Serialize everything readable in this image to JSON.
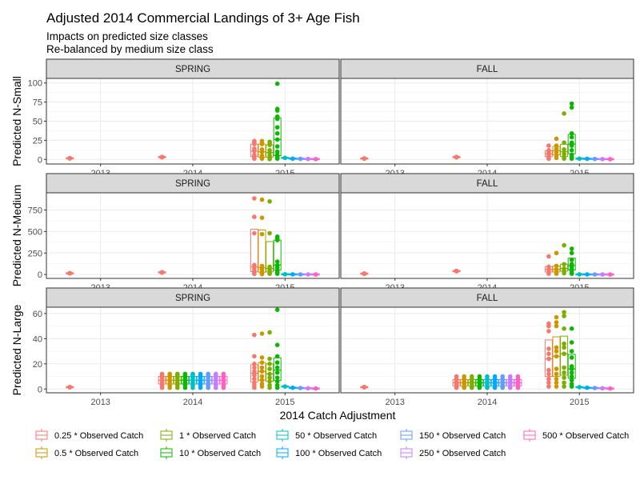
{
  "chart_data": {
    "type": "scatter",
    "title": "Adjusted 2014 Commercial Landings of 3+ Age Fish",
    "subtitle_lines": [
      "Impacts on predicted size classes",
      "Re-balanced by medium size class"
    ],
    "legend": {
      "title": "2014 Catch Adjustment",
      "position": "bottom",
      "entries": [
        {
          "label": "0.25 * Observed Catch",
          "color": "#F8766D"
        },
        {
          "label": "0.5 * Observed Catch",
          "color": "#CD9600"
        },
        {
          "label": "1 * Observed Catch",
          "color": "#7CAE00"
        },
        {
          "label": "10 * Observed Catch",
          "color": "#0CB702"
        },
        {
          "label": "50 * Observed Catch",
          "color": "#00BFC4"
        },
        {
          "label": "100 * Observed Catch",
          "color": "#00A9FF"
        },
        {
          "label": "150 * Observed Catch",
          "color": "#619CFF"
        },
        {
          "label": "250 * Observed Catch",
          "color": "#C77CFF"
        },
        {
          "label": "500 * Observed Catch",
          "color": "#FF61C3"
        }
      ]
    },
    "x_categories": [
      "2013",
      "2014",
      "2015"
    ],
    "columns": [
      "SPRING",
      "FALL"
    ],
    "rows": [
      {
        "ylabel": "Predicted N-Small",
        "ylim": [
          -6,
          106
        ],
        "yticks": [
          0,
          25,
          50,
          75,
          100
        ],
        "panels": {
          "SPRING": {
            "2013": [
              [
                1.5,
                1.5,
                1.5,
                1.5,
                1.5,
                1.5,
                1.5,
                1.5,
                1.5
              ]
            ],
            "2014": [
              [
                3,
                3,
                3,
                3,
                3,
                3,
                3,
                3,
                3
              ]
            ],
            "2015": [
              [
                24,
                22,
                20,
                14,
                11,
                6,
                4,
                2,
                1
              ],
              [
                24,
                22,
                20,
                13,
                10,
                5,
                3,
                2,
                1
              ],
              [
                23,
                21,
                19,
                12,
                9,
                5,
                3,
                1,
                0.5
              ],
              [
                99,
                66,
                64,
                56,
                53,
                42,
                34,
                26,
                17,
                10,
                6,
                4,
                3,
                2,
                1
              ],
              [
                2
              ],
              [
                1
              ],
              [
                0.8
              ],
              [
                0.6
              ],
              [
                0.4
              ]
            ]
          },
          "FALL": {
            "2013": [
              [
                1.2,
                1.2,
                1.2,
                1.2,
                1.2,
                1.2,
                1.2,
                1.2,
                1.2
              ]
            ],
            "2014": [
              [
                3,
                3,
                3,
                3,
                3,
                3,
                3,
                3,
                3
              ]
            ],
            "2015": [
              [
                18,
                12,
                9,
                6,
                3,
                1
              ],
              [
                27,
                18,
                14,
                9,
                5,
                2
              ],
              [
                60,
                22,
                13,
                7,
                3,
                1
              ],
              [
                73,
                68,
                34,
                29,
                22,
                18,
                12,
                6,
                3,
                1
              ],
              [
                1
              ],
              [
                0.8
              ],
              [
                0.6
              ],
              [
                0.4
              ],
              [
                0.3
              ]
            ]
          }
        }
      },
      {
        "ylabel": "Predicted N-Medium",
        "ylim": [
          -45,
          950
        ],
        "yticks": [
          0,
          250,
          500,
          750
        ],
        "panels": {
          "SPRING": {
            "2013": [
              [
                15,
                15,
                15,
                15,
                15,
                15,
                15,
                15,
                15
              ]
            ],
            "2014": [
              [
                25,
                25,
                25,
                25,
                25,
                25,
                25,
                25,
                25
              ]
            ],
            "2015": [
              [
                885,
                670,
                480,
                110,
                70,
                40,
                20,
                8
              ],
              [
                870,
                660,
                470,
                100,
                60,
                30,
                15,
                5
              ],
              [
                850,
                480,
                90,
                50,
                25,
                10
              ],
              [
                440,
                420,
                400,
                150,
                110,
                80,
                50,
                25,
                10
              ],
              [
                3
              ],
              [
                2
              ],
              [
                1.5
              ],
              [
                1
              ],
              [
                0.5
              ]
            ]
          },
          "FALL": {
            "2013": [
              [
                10,
                10,
                10,
                10,
                10,
                10,
                10,
                10,
                10
              ]
            ],
            "2014": [
              [
                40,
                40,
                40,
                40,
                40,
                40,
                40,
                40,
                40
              ]
            ],
            "2015": [
              [
                210,
                90,
                60,
                30,
                10
              ],
              [
                250,
                100,
                60,
                30,
                10
              ],
              [
                340,
                120,
                70,
                40,
                15
              ],
              [
                300,
                250,
                170,
                120,
                90,
                60,
                30,
                10
              ],
              [
                2
              ],
              [
                1.5
              ],
              [
                1
              ],
              [
                0.5
              ],
              [
                0.3
              ]
            ]
          }
        }
      },
      {
        "ylabel": "Predicted N-Large",
        "ylim": [
          -3,
          65
        ],
        "yticks": [
          0,
          20,
          40,
          60
        ],
        "panels": {
          "SPRING": {
            "2013": [
              [
                1.5,
                1.5,
                1.5,
                1.5,
                1.5,
                1.5,
                1.5,
                1.5,
                1.5
              ]
            ],
            "2014": [
              [
                12,
                11,
                9,
                7,
                5,
                3,
                1
              ],
              [
                12,
                11,
                9,
                7,
                5,
                3,
                1
              ],
              [
                12,
                11,
                9,
                7,
                5,
                3,
                1
              ],
              [
                12,
                11,
                9,
                7,
                5,
                3,
                1
              ],
              [
                12,
                11,
                9,
                7,
                5,
                3,
                1
              ],
              [
                12,
                11,
                9,
                7,
                5,
                3,
                1
              ],
              [
                12,
                11,
                9,
                7,
                5,
                3,
                1
              ],
              [
                12,
                11,
                9,
                7,
                5,
                3,
                1
              ],
              [
                12,
                11,
                9,
                7,
                5,
                3,
                1
              ]
            ],
            "2015": [
              [
                43,
                26,
                20,
                17,
                14,
                11,
                8,
                5,
                3,
                1
              ],
              [
                44,
                25,
                21,
                17,
                14,
                10,
                7,
                4,
                2
              ],
              [
                45,
                24,
                20,
                16,
                12,
                9,
                6,
                3,
                1
              ],
              [
                63,
                35,
                26,
                21,
                17,
                13,
                9,
                6,
                3,
                1
              ],
              [
                2
              ],
              [
                1
              ],
              [
                0.8
              ],
              [
                0.6
              ],
              [
                0.4
              ]
            ]
          },
          "FALL": {
            "2013": [
              [
                1.5,
                1.5,
                1.5,
                1.5,
                1.5,
                1.5,
                1.5,
                1.5,
                1.5
              ]
            ],
            "2014": [
              [
                10,
                8,
                6,
                4,
                2,
                1
              ],
              [
                10,
                8,
                6,
                4,
                2,
                1
              ],
              [
                10,
                8,
                6,
                4,
                2,
                1
              ],
              [
                10,
                8,
                6,
                4,
                2,
                1
              ],
              [
                10,
                8,
                6,
                4,
                2,
                1
              ],
              [
                10,
                8,
                6,
                4,
                2,
                1
              ],
              [
                10,
                8,
                6,
                4,
                2,
                1
              ],
              [
                10,
                8,
                6,
                4,
                2,
                1
              ],
              [
                10,
                8,
                6,
                4,
                2,
                1
              ]
            ],
            "2015": [
              [
                52,
                50,
                46,
                32,
                28,
                24,
                15,
                12,
                8,
                5,
                2
              ],
              [
                57,
                53,
                50,
                33,
                30,
                26,
                16,
                12,
                8,
                5,
                2
              ],
              [
                61,
                58,
                48,
                36,
                33,
                28,
                17,
                13,
                9,
                5,
                2
              ],
              [
                48,
                37,
                30,
                25,
                18,
                16,
                13,
                10,
                7,
                4,
                2
              ],
              [
                1.5
              ],
              [
                1
              ],
              [
                0.8
              ],
              [
                0.6
              ],
              [
                0.4
              ]
            ]
          }
        }
      }
    ],
    "grid": true
  }
}
